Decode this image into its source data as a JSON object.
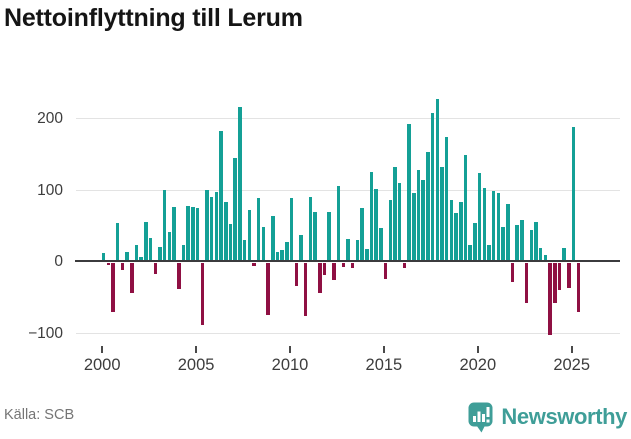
{
  "title": "Nettoinflyttning till Lerum",
  "source": "Källa: SCB",
  "branding": {
    "name": "Newsworthy",
    "color": "#3f9e98",
    "logo_icon": "speech-bubble-with-bar-chart-and-exclamation"
  },
  "chart_data": {
    "type": "bar",
    "title": "Nettoinflyttning till Lerum",
    "frequency": "quarterly",
    "start": "2000 Q1",
    "end": "2025 Q2",
    "values": [
      11,
      -4,
      -69,
      53,
      -10,
      13,
      -43,
      23,
      6,
      55,
      32,
      -16,
      20,
      100,
      40,
      75,
      -37,
      23,
      77,
      75,
      74,
      -88,
      100,
      90,
      96,
      182,
      83,
      52,
      144,
      216,
      30,
      72,
      -5,
      88,
      47,
      -74,
      63,
      13,
      16,
      26,
      88,
      -33,
      37,
      -75,
      90,
      69,
      -43,
      -18,
      69,
      -24,
      105,
      -6,
      31,
      -8,
      29,
      74,
      17,
      124,
      101,
      46,
      -23,
      86,
      131,
      109,
      -8,
      191,
      95,
      127,
      114,
      152,
      207,
      226,
      131,
      174,
      86,
      67,
      83,
      149,
      23,
      53,
      123,
      102,
      23,
      98,
      95,
      48,
      80,
      -27,
      51,
      58,
      -57,
      44,
      54,
      18,
      8,
      -102,
      -57,
      -38,
      18,
      -35,
      188,
      -69
    ],
    "x_tick_years": [
      2000,
      2005,
      2010,
      2015,
      2020,
      2025
    ],
    "x_tick_labels": [
      "2000",
      "2005",
      "2010",
      "2015",
      "2020",
      "2025"
    ],
    "y_ticks": [
      200,
      100,
      0,
      -100
    ],
    "y_tick_labels": [
      "200",
      "100",
      "0",
      "−100"
    ],
    "ylim": [
      -115,
      235
    ],
    "grid": "horizontal",
    "legend": "none",
    "positive_color": "#14a096",
    "negative_color": "#8f1043",
    "zero_line_color": "#3b3b3d"
  }
}
